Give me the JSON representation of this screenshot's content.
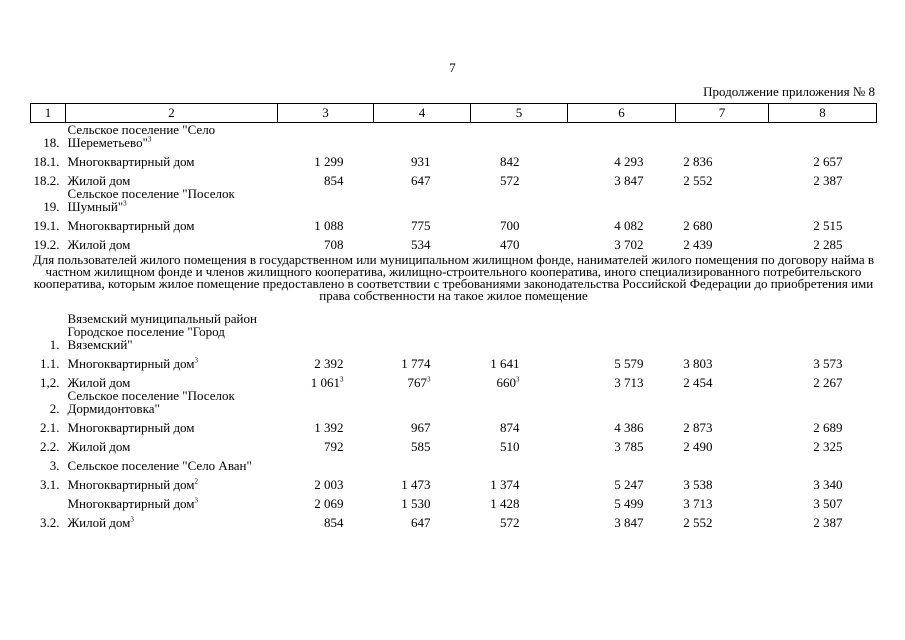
{
  "page_number": "7",
  "continuation": "Продолжение приложения № 8",
  "table": {
    "header": [
      "1",
      "2",
      "3",
      "4",
      "5",
      "6",
      "7",
      "8"
    ],
    "rows": [
      {
        "num": "18.",
        "name": "Сельское поселение \"Село Шереметьево\"",
        "name_sup": "3"
      },
      {
        "num": "18.1.",
        "name": "Многоквартирный дом",
        "cells": [
          "1 299",
          "931",
          "842",
          "4 293",
          "2 836",
          "2 657"
        ]
      },
      {
        "num": "18.2.",
        "name": "Жилой дом",
        "cells": [
          "854",
          "647",
          "572",
          "3 847",
          "2 552",
          "2 387"
        ]
      },
      {
        "num": "19.",
        "name": "Сельское поселение \"Поселок Шумный\"",
        "name_sup": "3"
      },
      {
        "num": "19.1.",
        "name": "Многоквартирный дом",
        "cells": [
          "1 088",
          "775",
          "700",
          "4 082",
          "2 680",
          "2 515"
        ]
      },
      {
        "num": "19.2.",
        "name": "Жилой дом",
        "cells": [
          "708",
          "534",
          "470",
          "3 702",
          "2 439",
          "2 285"
        ]
      },
      {
        "note": "Для пользователей жилого помещения в государственном или муниципальном жилищном фонде, нанимателей жилого помещения по договору найма в частном жилищном фонде и членов жилищного кооператива, жилищно-строительного кооператива, иного специализированного потребительского кооператива, которым жилое помещение предоставлено в соответствии с требованиями законодательства Российской Федерации до приобретения ими права собственности на такое жилое помещение"
      },
      {
        "name": "Вяземский муниципальный район"
      },
      {
        "num": "1.",
        "name": "Городское поселение \"Город Вяземский\""
      },
      {
        "num": "1.1.",
        "name": "Многоквартирный дом",
        "name_sup": "3",
        "cells": [
          "2 392",
          "1 774",
          "1 641",
          "5 579",
          "3 803",
          "3 573"
        ]
      },
      {
        "num": "1,2.",
        "name": "Жилой дом",
        "cells": [
          {
            "text": "1 061",
            "sup": "3"
          },
          {
            "text": "767",
            "sup": "3"
          },
          {
            "text": "660",
            "sup": "3"
          },
          "3 713",
          "2 454",
          "2 267"
        ]
      },
      {
        "num": "2.",
        "name": "Сельское поселение \"Поселок Дормидонтовка\""
      },
      {
        "num": "2.1.",
        "name": "Многоквартирный дом",
        "cells": [
          "1 392",
          "967",
          "874",
          "4 386",
          "2 873",
          "2 689"
        ]
      },
      {
        "num": "2.2.",
        "name": "Жилой дом",
        "cells": [
          "792",
          "585",
          "510",
          "3 785",
          "2 490",
          "2 325"
        ]
      },
      {
        "num": "3.",
        "name": "Сельское поселение \"Село Аван\""
      },
      {
        "num": "3.1.",
        "name": "Многоквартирный дом",
        "name_sup": "2",
        "cells": [
          "2 003",
          "1 473",
          "1 374",
          "5 247",
          "3 538",
          "3 340"
        ]
      },
      {
        "name": "Многоквартирный дом",
        "name_sup": "3",
        "cells": [
          "2 069",
          "1 530",
          "1 428",
          "5 499",
          "3 713",
          "3 507"
        ]
      },
      {
        "num": "3.2.",
        "name": "Жилой дом",
        "name_sup": "3",
        "cells": [
          "854",
          "647",
          "572",
          "3 847",
          "2 552",
          "2 387"
        ]
      }
    ]
  }
}
